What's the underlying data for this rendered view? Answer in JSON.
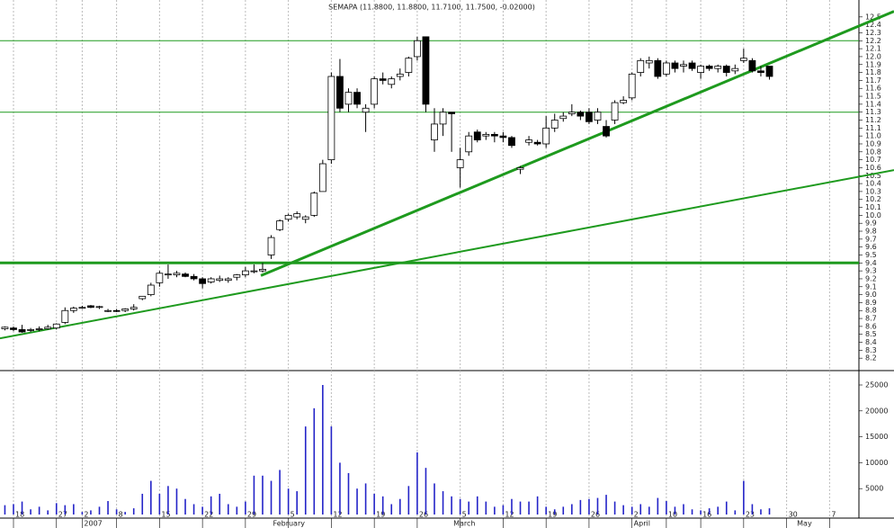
{
  "chart_data": {
    "type": "candlestick",
    "title": "SEMAPA (11.8800, 11.8800, 11.7100, 11.7500, -0.02000)",
    "x": [
      -1,
      0,
      1,
      2,
      3,
      4,
      5,
      6,
      7,
      8,
      9,
      10,
      11,
      12,
      13,
      14,
      15,
      16,
      17,
      18,
      19,
      20,
      21,
      22,
      23,
      24,
      25,
      26,
      27,
      28,
      29,
      30,
      31,
      32,
      33,
      34,
      35,
      36,
      37,
      38,
      39,
      40,
      41,
      42,
      43,
      44,
      45,
      46,
      47,
      48,
      49,
      50,
      51,
      52,
      53,
      54,
      55,
      56,
      57,
      58,
      59,
      60,
      61,
      62,
      63,
      64,
      65,
      66,
      67,
      68,
      69,
      70,
      71,
      72,
      73,
      74,
      75,
      76,
      77,
      78,
      79,
      80,
      81,
      82,
      83,
      84,
      85,
      86,
      87,
      88
    ],
    "candles": [
      [
        8.57,
        8.6,
        8.55,
        8.59
      ],
      [
        8.58,
        8.6,
        8.54,
        8.56
      ],
      [
        8.56,
        8.62,
        8.52,
        8.53
      ],
      [
        8.55,
        8.58,
        8.53,
        8.56
      ],
      [
        8.56,
        8.6,
        8.54,
        8.57
      ],
      [
        8.57,
        8.62,
        8.56,
        8.59
      ],
      [
        8.58,
        8.64,
        8.56,
        8.63
      ],
      [
        8.65,
        8.84,
        8.63,
        8.8
      ],
      [
        8.8,
        8.85,
        8.77,
        8.83
      ],
      [
        8.83,
        8.86,
        8.82,
        8.84
      ],
      [
        8.86,
        8.87,
        8.83,
        8.84
      ],
      [
        8.85,
        8.86,
        8.82,
        8.85
      ],
      [
        8.8,
        8.82,
        8.78,
        8.8
      ],
      [
        8.8,
        8.82,
        8.78,
        8.79
      ],
      [
        8.8,
        8.83,
        8.78,
        8.82
      ],
      [
        8.82,
        8.88,
        8.8,
        8.84
      ],
      [
        8.95,
        8.98,
        8.93,
        8.98
      ],
      [
        9.0,
        9.15,
        8.98,
        9.12
      ],
      [
        9.15,
        9.3,
        9.1,
        9.27
      ],
      [
        9.25,
        9.38,
        9.2,
        9.26
      ],
      [
        9.25,
        9.3,
        9.22,
        9.27
      ],
      [
        9.26,
        9.28,
        9.22,
        9.23
      ],
      [
        9.23,
        9.26,
        9.18,
        9.2
      ],
      [
        9.2,
        9.22,
        9.08,
        9.14
      ],
      [
        9.16,
        9.22,
        9.14,
        9.2
      ],
      [
        9.18,
        9.24,
        9.16,
        9.2
      ],
      [
        9.18,
        9.22,
        9.15,
        9.2
      ],
      [
        9.22,
        9.26,
        9.18,
        9.25
      ],
      [
        9.25,
        9.35,
        9.22,
        9.3
      ],
      [
        9.3,
        9.38,
        9.27,
        9.3
      ],
      [
        9.3,
        9.4,
        9.28,
        9.32
      ],
      [
        9.5,
        9.75,
        9.45,
        9.72
      ],
      [
        9.82,
        9.95,
        9.8,
        9.93
      ],
      [
        9.95,
        10.02,
        9.92,
        10.0
      ],
      [
        9.98,
        10.05,
        9.95,
        10.02
      ],
      [
        9.95,
        10.0,
        9.9,
        9.98
      ],
      [
        10.0,
        10.3,
        9.98,
        10.28
      ],
      [
        10.3,
        10.7,
        10.3,
        10.65
      ],
      [
        10.7,
        11.8,
        10.65,
        11.75
      ],
      [
        11.75,
        11.97,
        11.3,
        11.35
      ],
      [
        11.4,
        11.6,
        11.3,
        11.55
      ],
      [
        11.55,
        11.6,
        11.35,
        11.4
      ],
      [
        11.3,
        11.4,
        11.05,
        11.35
      ],
      [
        11.4,
        11.75,
        11.35,
        11.72
      ],
      [
        11.72,
        11.8,
        11.65,
        11.7
      ],
      [
        11.65,
        11.75,
        11.6,
        11.72
      ],
      [
        11.75,
        11.85,
        11.7,
        11.78
      ],
      [
        11.8,
        12.0,
        11.75,
        11.98
      ],
      [
        12.0,
        12.25,
        11.95,
        12.2
      ],
      [
        12.25,
        12.25,
        11.3,
        11.4
      ],
      [
        10.95,
        11.35,
        10.8,
        11.15
      ],
      [
        11.15,
        11.35,
        11.0,
        11.3
      ],
      [
        11.3,
        11.3,
        10.8,
        11.28
      ],
      [
        10.6,
        10.85,
        10.35,
        10.7
      ],
      [
        10.8,
        11.05,
        10.75,
        11.0
      ],
      [
        11.05,
        11.08,
        10.92,
        10.95
      ],
      [
        11.0,
        11.05,
        10.95,
        11.02
      ],
      [
        11.02,
        11.05,
        10.92,
        11.0
      ],
      [
        11.0,
        11.05,
        10.92,
        10.98
      ],
      [
        10.98,
        11.0,
        10.85,
        10.88
      ],
      [
        10.58,
        10.62,
        10.52,
        10.6
      ],
      [
        10.92,
        11.0,
        10.88,
        10.95
      ],
      [
        10.92,
        10.95,
        10.88,
        10.9
      ],
      [
        10.9,
        11.25,
        10.85,
        11.1
      ],
      [
        11.1,
        11.28,
        11.05,
        11.2
      ],
      [
        11.22,
        11.3,
        11.18,
        11.25
      ],
      [
        11.28,
        11.4,
        11.25,
        11.3
      ],
      [
        11.3,
        11.32,
        11.2,
        11.25
      ],
      [
        11.3,
        11.35,
        11.15,
        11.18
      ],
      [
        11.2,
        11.35,
        11.15,
        11.3
      ],
      [
        11.12,
        11.2,
        10.98,
        11.0
      ],
      [
        11.2,
        11.45,
        11.15,
        11.42
      ],
      [
        11.42,
        11.5,
        11.4,
        11.45
      ],
      [
        11.48,
        11.8,
        11.45,
        11.78
      ],
      [
        11.8,
        11.98,
        11.75,
        11.95
      ],
      [
        11.92,
        12.0,
        11.85,
        11.95
      ],
      [
        11.95,
        11.98,
        11.72,
        11.75
      ],
      [
        11.78,
        11.95,
        11.75,
        11.92
      ],
      [
        11.92,
        11.95,
        11.8,
        11.85
      ],
      [
        11.88,
        11.95,
        11.8,
        11.9
      ],
      [
        11.92,
        11.95,
        11.82,
        11.85
      ],
      [
        11.8,
        11.9,
        11.72,
        11.88
      ],
      [
        11.88,
        11.9,
        11.82,
        11.85
      ],
      [
        11.85,
        11.9,
        11.8,
        11.88
      ],
      [
        11.88,
        11.9,
        11.75,
        11.8
      ],
      [
        11.82,
        11.9,
        11.78,
        11.85
      ],
      [
        11.95,
        12.1,
        11.92,
        11.98
      ],
      [
        11.95,
        11.98,
        11.8,
        11.82
      ],
      [
        11.82,
        11.88,
        11.75,
        11.8
      ],
      [
        11.88,
        11.88,
        11.71,
        11.75
      ]
    ],
    "volume": [
      1800,
      2000,
      2500,
      1000,
      1500,
      800,
      2200,
      1800,
      2000,
      500,
      800,
      1500,
      2600,
      1000,
      500,
      1200,
      4000,
      6500,
      4000,
      5500,
      5000,
      3000,
      2000,
      1500,
      3500,
      4000,
      2000,
      1500,
      2500,
      7500,
      7500,
      6500,
      8600,
      5000,
      4500,
      17000,
      20500,
      25000,
      17000,
      10000,
      8000,
      5000,
      6000,
      4000,
      3500,
      2000,
      3000,
      5500,
      12000,
      9000,
      6000,
      4500,
      3500,
      3000,
      2500,
      3500,
      2500,
      1500,
      1800,
      3000,
      2500,
      2500,
      3500,
      1500,
      1000,
      1500,
      2000,
      2800,
      3000,
      3200,
      3800,
      2500,
      1800,
      1500,
      2000,
      1500,
      3200,
      2600,
      1500,
      2000,
      1000,
      800,
      1200,
      1500,
      2500,
      800,
      6500,
      2000,
      1000,
      1200
    ],
    "up_color": "#ffffff",
    "down_color": "#000000",
    "volume_color": "#2323c8",
    "line_color": "#1e9a1e",
    "xlim": [
      -1.57,
      102.5
    ],
    "ylim": [
      8.1,
      12.6
    ],
    "vlim": [
      0,
      25000
    ],
    "yticks": [
      8.2,
      8.3,
      8.4,
      8.5,
      8.6,
      8.7,
      8.8,
      8.9,
      {
        "value": 9,
        "label": "9.0"
      },
      9.1,
      9.2,
      9.3,
      9.4,
      9.5,
      9.6,
      9.7,
      9.8,
      9.9,
      {
        "value": 10,
        "label": "10.0"
      },
      10.1,
      10.2,
      10.3,
      10.4,
      10.5,
      10.6,
      10.7,
      10.8,
      10.9,
      {
        "value": 11,
        "label": "11.0"
      },
      11.1,
      11.2,
      11.3,
      11.4,
      11.5,
      11.6,
      11.7,
      11.8,
      11.9,
      {
        "value": 12,
        "label": "12.0"
      },
      12.1,
      12.2,
      12.3,
      12.4,
      12.5
    ],
    "vticks": [
      5000,
      10000,
      15000,
      20000,
      25000
    ],
    "xticks": [
      {
        "value": 0,
        "label": "18"
      },
      {
        "value": 5,
        "label": "27"
      },
      {
        "value": 8,
        "label": "2"
      },
      {
        "value": 12,
        "label": "8"
      },
      {
        "value": 17,
        "label": "15"
      },
      {
        "value": 22,
        "label": "22"
      },
      {
        "value": 27,
        "label": "29"
      },
      {
        "value": 32,
        "label": "5"
      },
      {
        "value": 37,
        "label": "12"
      },
      {
        "value": 42,
        "label": "19"
      },
      {
        "value": 47,
        "label": "26"
      },
      {
        "value": 52,
        "label": "5"
      },
      {
        "value": 57,
        "label": "12"
      },
      {
        "value": 62,
        "label": "19"
      },
      {
        "value": 67,
        "label": "26"
      },
      {
        "value": 72,
        "label": "2"
      },
      {
        "value": 76,
        "label": "10"
      },
      {
        "value": 80,
        "label": "16"
      },
      {
        "value": 85,
        "label": "23"
      },
      {
        "value": 90,
        "label": "30"
      },
      {
        "value": 95,
        "label": "7"
      }
    ],
    "xlabels2": [
      {
        "value": 8,
        "label": "2007"
      },
      {
        "value": 30,
        "label": "February"
      },
      {
        "value": 51,
        "label": "March"
      },
      {
        "value": 72,
        "label": "April"
      },
      {
        "value": 91,
        "label": "May"
      }
    ],
    "hlines": [
      12.2,
      11.3,
      9.4
    ],
    "trendlines": [
      {
        "x": [
          -1.57,
          102.5
        ],
        "y": [
          8.45,
          10.57
        ]
      },
      {
        "x": [
          28.8,
          102.5
        ],
        "y": [
          9.24,
          12.57
        ]
      }
    ],
    "grid": true
  }
}
